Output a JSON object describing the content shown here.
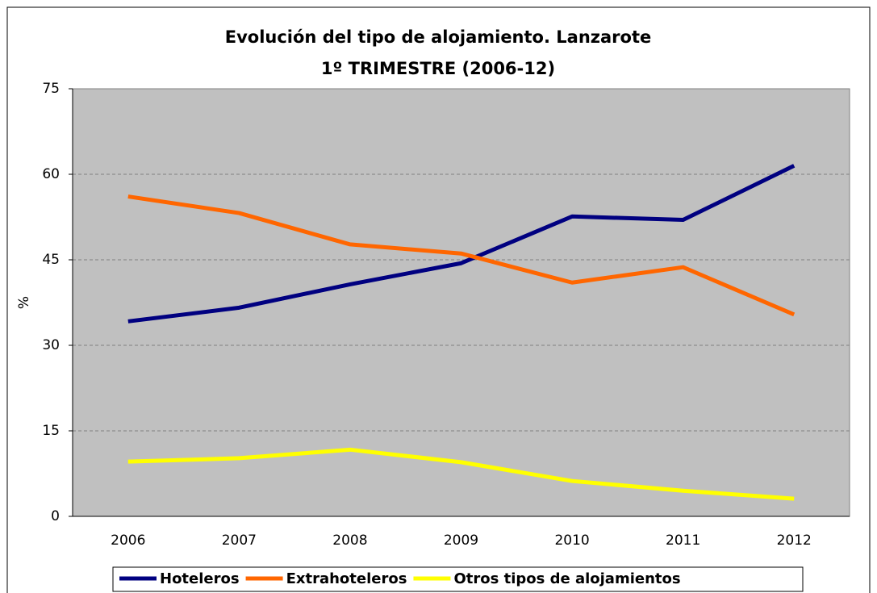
{
  "chart_data": {
    "type": "line",
    "title": "Evolución del tipo de alojamiento. Lanzarote",
    "subtitle": "1º TRIMESTRE (2006-12)",
    "y_label": "%",
    "categories": [
      "2006",
      "2007",
      "2008",
      "2009",
      "2010",
      "2011",
      "2012"
    ],
    "series": [
      {
        "name": "Hoteleros",
        "color": "#000080",
        "values": [
          34.2,
          36.6,
          40.7,
          44.4,
          52.6,
          52.0,
          61.5
        ]
      },
      {
        "name": "Extrahoteleros",
        "color": "#ff6600",
        "values": [
          56.1,
          53.2,
          47.7,
          46.1,
          41.0,
          43.7,
          35.4
        ]
      },
      {
        "name": "Otros tipos de alojamientos",
        "color": "#ffff00",
        "values": [
          9.6,
          10.2,
          11.7,
          9.5,
          6.2,
          4.5,
          3.1
        ]
      }
    ],
    "ylim": [
      0,
      75
    ],
    "yticks": [
      0,
      15,
      30,
      45,
      60,
      75
    ],
    "grid": true,
    "legend": "bottom"
  }
}
